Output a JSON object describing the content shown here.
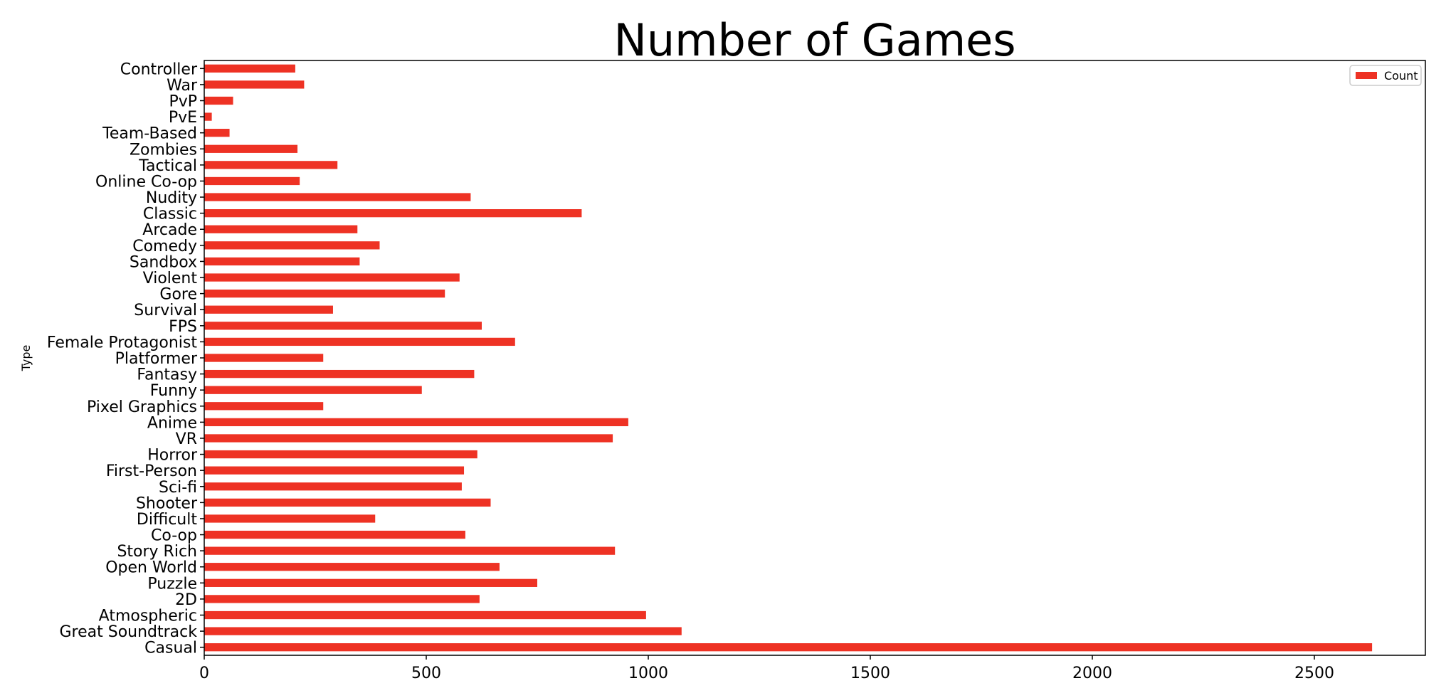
{
  "chart_data": {
    "type": "bar",
    "orientation": "horizontal",
    "title": "Number of Games",
    "xlabel": "",
    "ylabel": "Type",
    "xlim": [
      0,
      2750
    ],
    "x_ticks": [
      0,
      500,
      1000,
      1500,
      2000,
      2500
    ],
    "grid": false,
    "legend_position": "top-right",
    "bar_color": "#ee3224",
    "categories": [
      "Casual",
      "Great Soundtrack",
      "Atmospheric",
      "2D",
      "Puzzle",
      "Open World",
      "Story Rich",
      "Co-op",
      "Difficult",
      "Shooter",
      "Sci-fi",
      "First-Person",
      "Horror",
      "VR",
      "Anime",
      "Pixel Graphics",
      "Funny",
      "Fantasy",
      "Platformer",
      "Female Protagonist",
      "FPS",
      "Survival",
      "Gore",
      "Violent",
      "Sandbox",
      "Comedy",
      "Arcade",
      "Classic",
      "Nudity",
      "Online Co-op",
      "Tactical",
      "Zombies",
      "Team-Based",
      "PvE",
      "PvP",
      "War",
      "Controller"
    ],
    "series": [
      {
        "name": "Count",
        "values": [
          2630,
          1075,
          995,
          620,
          750,
          665,
          925,
          588,
          385,
          645,
          580,
          585,
          615,
          920,
          955,
          268,
          490,
          608,
          268,
          700,
          625,
          290,
          542,
          575,
          350,
          395,
          345,
          850,
          600,
          215,
          300,
          210,
          57,
          17,
          65,
          225,
          205
        ]
      }
    ]
  }
}
